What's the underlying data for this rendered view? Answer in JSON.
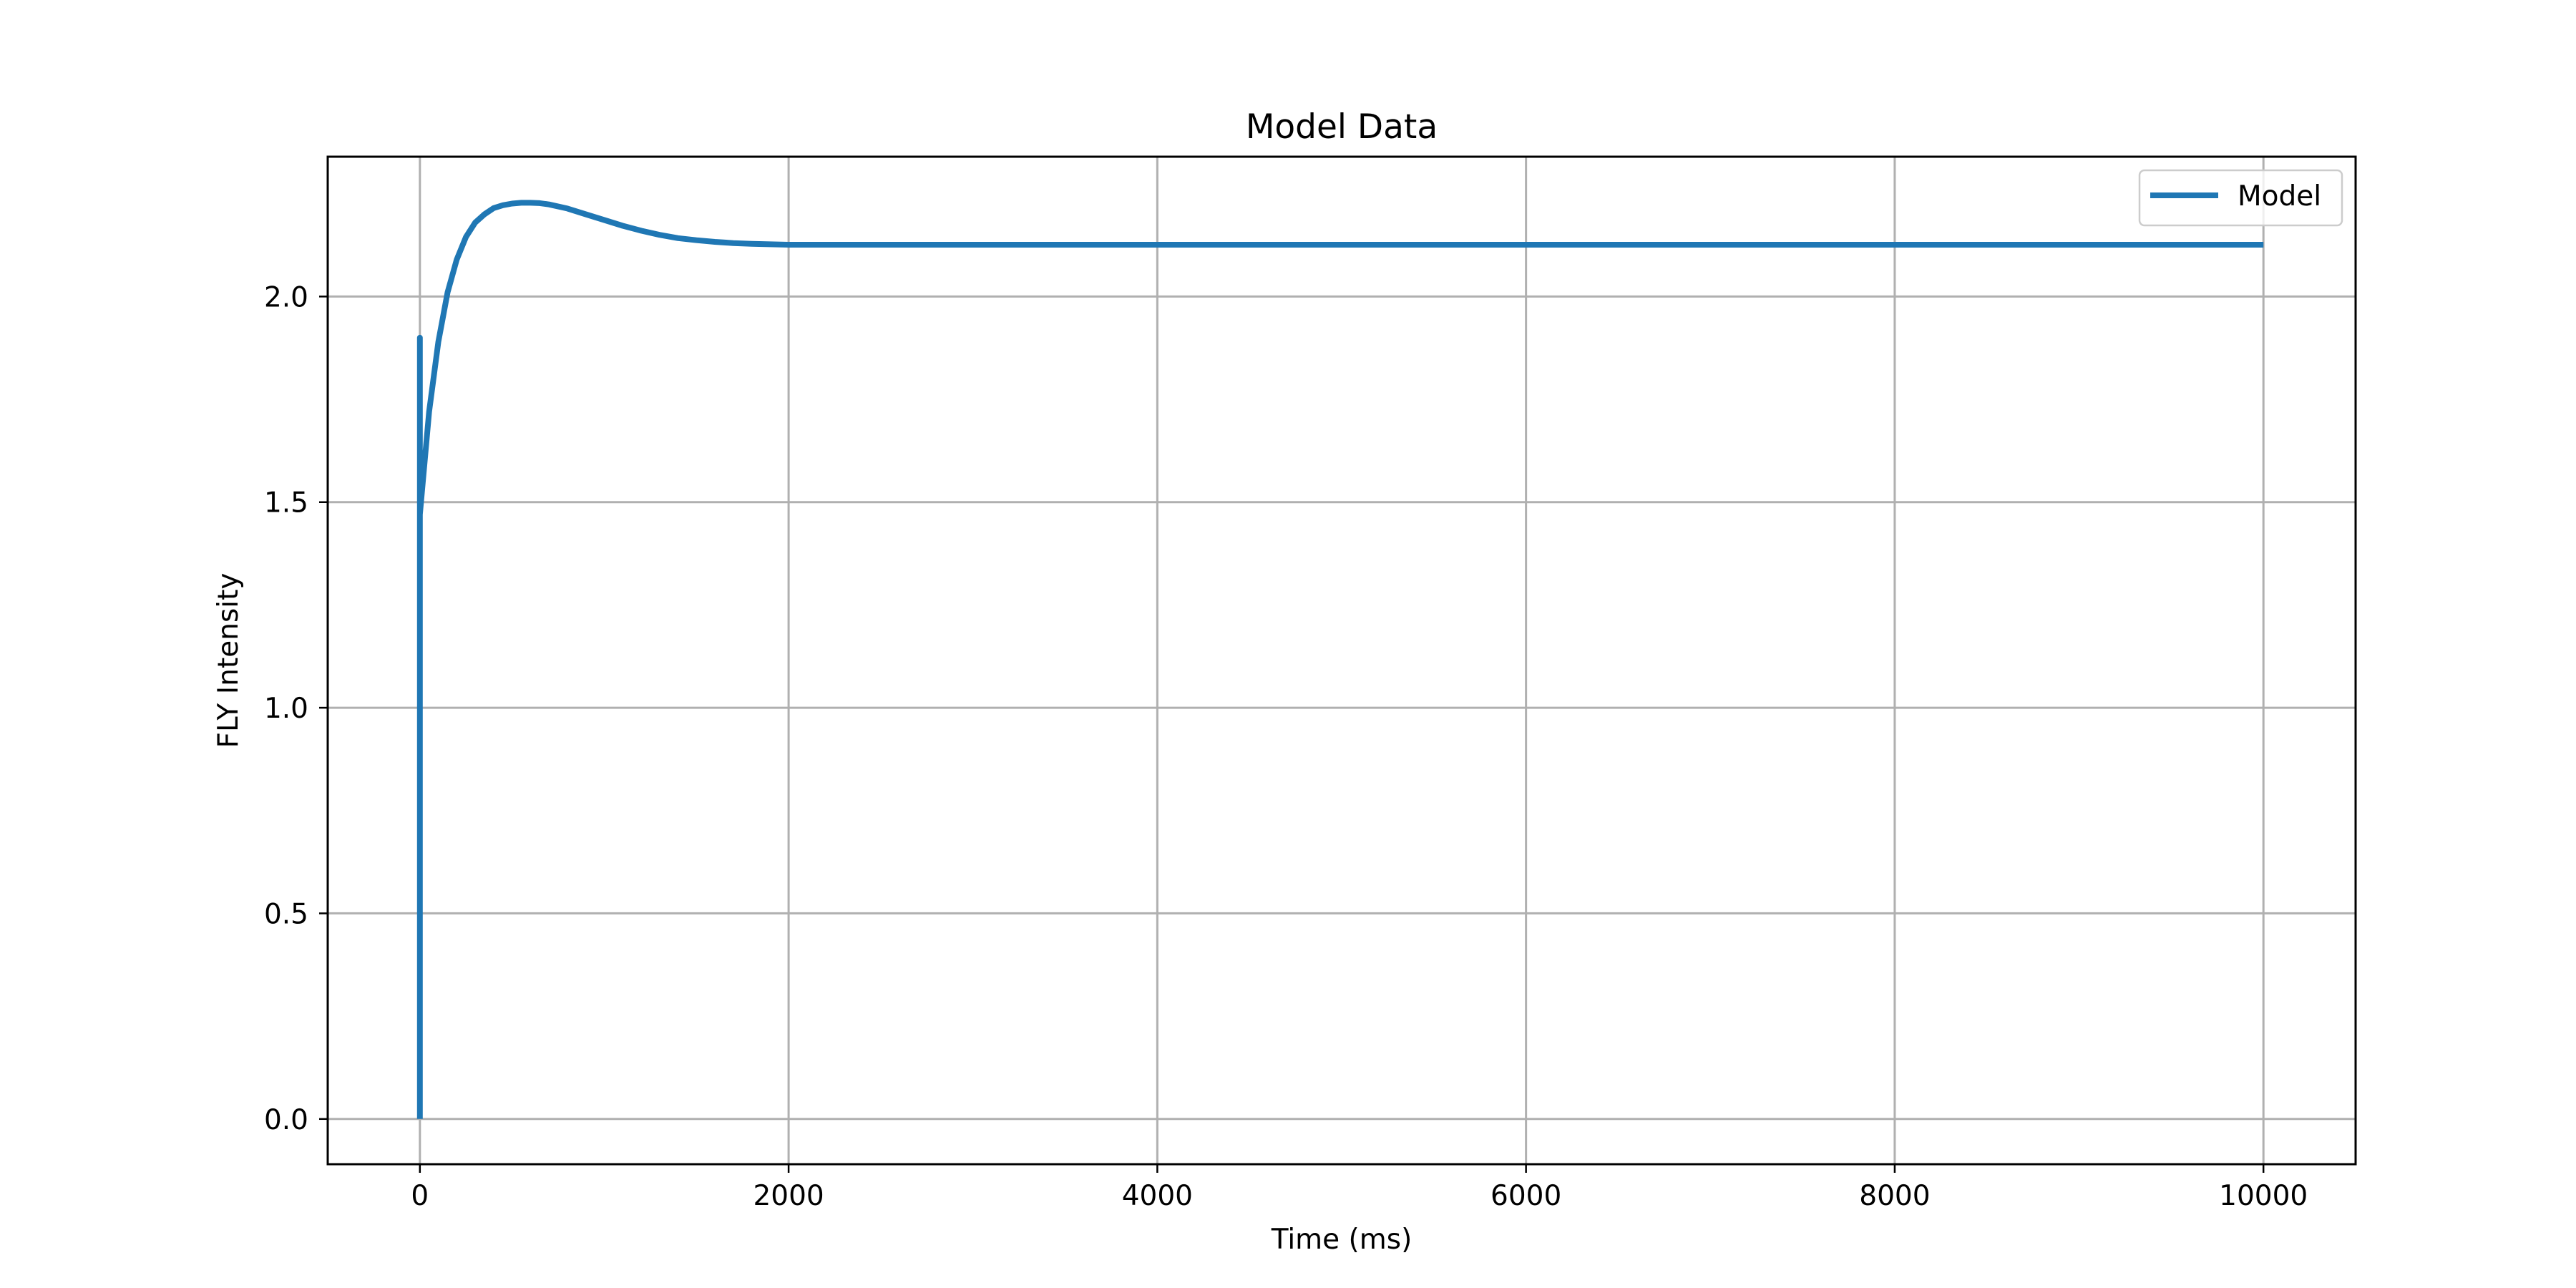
{
  "chart_data": {
    "type": "line",
    "title": "Model Data",
    "xlabel": "Time (ms)",
    "ylabel": "FLY Intensity",
    "xlim": [
      -500,
      10500
    ],
    "ylim": [
      -0.11,
      2.34
    ],
    "xticks": [
      0,
      2000,
      4000,
      6000,
      8000,
      10000
    ],
    "xtick_labels": [
      "0",
      "2000",
      "4000",
      "6000",
      "8000",
      "10000"
    ],
    "yticks": [
      0.0,
      0.5,
      1.0,
      1.5,
      2.0
    ],
    "ytick_labels": [
      "0.0",
      "0.5",
      "1.0",
      "1.5",
      "2.0"
    ],
    "grid": true,
    "legend_position": "top-right",
    "series": [
      {
        "name": "Model",
        "color": "#1f77b4",
        "x": [
          0,
          0,
          0,
          0,
          10,
          50,
          100,
          150,
          200,
          250,
          300,
          350,
          400,
          450,
          500,
          550,
          600,
          650,
          700,
          800,
          900,
          1000,
          1100,
          1200,
          1300,
          1400,
          1500,
          1600,
          1700,
          1800,
          1900,
          2000,
          2200,
          2400,
          2600,
          2800,
          3000,
          3500,
          4000,
          5000,
          6000,
          7000,
          8000,
          9000,
          10000
        ],
        "y": [
          0.0,
          1.9,
          1.9,
          1.47,
          1.52,
          1.72,
          1.89,
          2.01,
          2.09,
          2.145,
          2.18,
          2.2,
          2.215,
          2.222,
          2.226,
          2.228,
          2.228,
          2.227,
          2.224,
          2.214,
          2.2,
          2.186,
          2.172,
          2.16,
          2.15,
          2.142,
          2.137,
          2.133,
          2.13,
          2.128,
          2.127,
          2.126,
          2.126,
          2.126,
          2.126,
          2.126,
          2.126,
          2.126,
          2.126,
          2.126,
          2.126,
          2.126,
          2.126,
          2.126,
          2.126
        ]
      }
    ]
  }
}
